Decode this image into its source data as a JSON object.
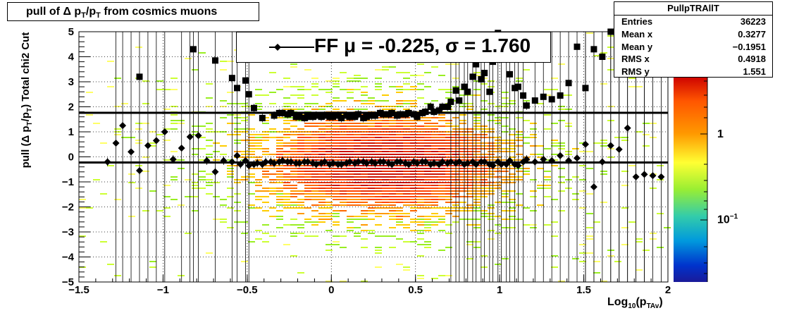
{
  "title": {
    "prefix": "pull of",
    "delta": "Δ",
    "p": "p",
    "sub_T": "T",
    "slash": "/p",
    "suffix": "from cosmics muons"
  },
  "axes": {
    "ylabel_pre": "pull (Δ p",
    "ylabel_mid": "/p",
    "ylabel_post": ")  Total chi2 Cut",
    "ylabel_sub": "T",
    "xlabel_pre": "Log",
    "xlabel_sub10": "10",
    "xlabel_mid": "(p",
    "xlabel_subTAv": "TAv",
    "xlabel_post": ")"
  },
  "legend": {
    "text": "FF μ = -0.225, σ =   1.760"
  },
  "stats": {
    "header": "PullpTRAllT",
    "rows": [
      {
        "label": "Entries",
        "value": "36223"
      },
      {
        "label": "Mean x",
        "value": "0.3277"
      },
      {
        "label": "Mean y",
        "value": "−0.1951"
      },
      {
        "label": "RMS x",
        "value": "0.4918"
      },
      {
        "label": "RMS y",
        "value": "1.551"
      }
    ]
  },
  "colorbar": {
    "tick_1": "1",
    "tick_01_base": "10",
    "tick_01_exp": "−1"
  },
  "colors": {
    "mean_marker": "#000000",
    "sigma_marker": "#000000",
    "grid": "#000000",
    "frame": "#000000"
  },
  "chart_data": {
    "type": "scatter",
    "xlim": [
      -1.5,
      2
    ],
    "ylim": [
      -5,
      5
    ],
    "xticks": [
      -1.5,
      -1,
      -0.5,
      0,
      0.5,
      1,
      1.5,
      2
    ],
    "xtick_labels": [
      "−1.5",
      "−1",
      "−0.5",
      "0",
      "0.5",
      "1",
      "1.5",
      "2"
    ],
    "yticks": [
      -5,
      -4,
      -3,
      -2,
      -1,
      0,
      1,
      2,
      3,
      4,
      5
    ],
    "ytick_labels": [
      "−5",
      "−4",
      "−3",
      "−2",
      "−1",
      "0",
      "1",
      "2",
      "3",
      "4",
      "5"
    ],
    "grid": true,
    "colorbar_scale": "log",
    "hlines": [
      -0.225,
      1.76
    ],
    "series": [
      {
        "marker": "diamond",
        "x": [
          -1.33,
          -1.28,
          -1.24,
          -1.19,
          -1.14,
          -1.09,
          -1.04,
          -0.99,
          -0.94,
          -0.89,
          -0.84,
          -0.79,
          -0.74,
          -0.69,
          -0.64,
          -0.59,
          -0.56,
          -0.54,
          -0.51,
          -0.49,
          -0.46,
          -0.44,
          -0.41,
          -0.39,
          -0.36,
          -0.34,
          -0.31,
          -0.29,
          -0.26,
          -0.24,
          -0.21,
          -0.19,
          -0.16,
          -0.14,
          -0.11,
          -0.09,
          -0.06,
          -0.04,
          -0.01,
          0.01,
          0.04,
          0.06,
          0.09,
          0.11,
          0.14,
          0.16,
          0.19,
          0.21,
          0.24,
          0.26,
          0.29,
          0.31,
          0.34,
          0.36,
          0.39,
          0.41,
          0.44,
          0.46,
          0.49,
          0.51,
          0.54,
          0.56,
          0.59,
          0.61,
          0.64,
          0.66,
          0.69,
          0.71,
          0.74,
          0.76,
          0.79,
          0.81,
          0.84,
          0.86,
          0.89,
          0.91,
          0.94,
          0.96,
          0.99,
          1.01,
          1.04,
          1.06,
          1.09,
          1.11,
          1.14,
          1.16,
          1.21,
          1.26,
          1.31,
          1.36,
          1.41,
          1.46,
          1.51,
          1.56,
          1.61,
          1.66,
          1.71,
          1.76,
          1.81,
          1.86,
          1.91,
          1.96
        ],
        "y": [
          -0.2,
          0.55,
          1.25,
          0.2,
          -0.55,
          0.45,
          0.65,
          1.0,
          -0.1,
          0.35,
          0.8,
          0.85,
          -0.15,
          -0.6,
          -0.15,
          -0.2,
          0.05,
          -0.3,
          -0.15,
          -0.35,
          -0.3,
          -0.25,
          -0.3,
          -0.2,
          -0.2,
          -0.25,
          -0.2,
          -0.15,
          -0.2,
          -0.2,
          -0.25,
          -0.25,
          -0.2,
          -0.2,
          -0.25,
          -0.3,
          -0.25,
          -0.2,
          -0.3,
          -0.25,
          -0.3,
          -0.3,
          -0.25,
          -0.2,
          -0.25,
          -0.2,
          -0.2,
          -0.25,
          -0.2,
          -0.25,
          -0.2,
          -0.2,
          -0.25,
          -0.3,
          -0.2,
          -0.2,
          -0.25,
          -0.3,
          -0.2,
          -0.25,
          -0.2,
          -0.2,
          -0.3,
          -0.25,
          -0.3,
          -0.2,
          -0.25,
          -0.2,
          -0.25,
          -0.2,
          -0.3,
          -0.25,
          -0.2,
          -0.3,
          -0.2,
          -0.2,
          -0.3,
          -0.35,
          -0.2,
          -0.3,
          -0.3,
          -0.15,
          -0.3,
          -0.35,
          -0.2,
          -0.1,
          -0.2,
          -0.1,
          -0.15,
          0.05,
          -0.15,
          -0.05,
          0.5,
          -1.2,
          -0.2,
          0.45,
          0.3,
          1.15,
          -0.8,
          -0.7,
          -0.75,
          -0.8
        ]
      },
      {
        "marker": "square",
        "x": [
          -1.14,
          -0.82,
          -0.69,
          -0.59,
          -0.56,
          -0.51,
          -0.49,
          -0.46,
          -0.41,
          -0.34,
          -0.31,
          -0.29,
          -0.26,
          -0.24,
          -0.21,
          -0.19,
          -0.16,
          -0.14,
          -0.11,
          -0.09,
          -0.06,
          -0.04,
          -0.01,
          0.01,
          0.04,
          0.06,
          0.09,
          0.11,
          0.14,
          0.16,
          0.19,
          0.21,
          0.24,
          0.26,
          0.29,
          0.31,
          0.34,
          0.36,
          0.39,
          0.41,
          0.44,
          0.46,
          0.49,
          0.51,
          0.54,
          0.56,
          0.59,
          0.61,
          0.64,
          0.66,
          0.69,
          0.71,
          0.74,
          0.76,
          0.79,
          0.81,
          0.84,
          0.86,
          0.89,
          0.91,
          0.94,
          0.96,
          0.99,
          1.01,
          1.04,
          1.06,
          1.09,
          1.11,
          1.14,
          1.16,
          1.21,
          1.26,
          1.31,
          1.36,
          1.41,
          1.46,
          1.51,
          1.56,
          1.61,
          1.66,
          1.71,
          1.76,
          1.81,
          1.86
        ],
        "y": [
          3.2,
          4.3,
          3.85,
          3.15,
          2.75,
          3.05,
          2.5,
          1.95,
          1.55,
          1.65,
          1.75,
          1.75,
          1.7,
          1.75,
          1.6,
          1.6,
          1.55,
          1.6,
          1.6,
          1.65,
          1.6,
          1.65,
          1.6,
          1.6,
          1.65,
          1.55,
          1.65,
          1.6,
          1.6,
          1.7,
          1.55,
          1.6,
          1.65,
          1.65,
          1.75,
          1.7,
          1.7,
          1.75,
          1.65,
          1.7,
          1.7,
          1.75,
          1.7,
          1.6,
          1.75,
          1.8,
          2.0,
          1.8,
          1.85,
          2.0,
          2.0,
          2.2,
          2.65,
          2.25,
          2.8,
          2.6,
          3.2,
          3.7,
          3.1,
          3.35,
          2.6,
          3.8,
          4.95,
          4.2,
          4.1,
          3.3,
          2.75,
          2.8,
          2.45,
          2.05,
          2.25,
          2.4,
          2.3,
          2.45,
          2.95,
          4.4,
          2.75,
          4.3,
          4.0,
          5.0,
          4.25,
          3.8,
          3.65,
          3.75
        ]
      }
    ]
  }
}
